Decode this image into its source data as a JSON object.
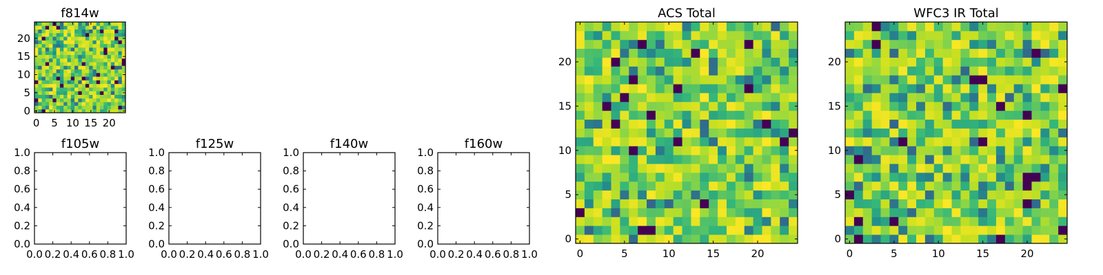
{
  "colors": {
    "cmap": [
      "#440154",
      "#3b528b",
      "#21918c",
      "#35b779",
      "#8fd744",
      "#c8e020",
      "#fde725"
    ],
    "axes": "#000000",
    "background": "#ffffff"
  },
  "chart_data": [
    {
      "id": "f814w",
      "type": "heatmap",
      "title": "f814w",
      "grid_size": 25,
      "xlim": [
        -0.5,
        24.5
      ],
      "ylim": [
        -0.5,
        24.5
      ],
      "xticks": [
        0,
        5,
        10,
        15,
        20
      ],
      "yticks": [
        0,
        5,
        10,
        15,
        20
      ],
      "xtick_labels": [
        "0",
        "5",
        "10",
        "15",
        "20"
      ],
      "ytick_labels": [
        "0",
        "5",
        "10",
        "15",
        "20"
      ],
      "value_range": [
        0,
        1
      ],
      "seed": 814
    },
    {
      "id": "f105w",
      "type": "empty",
      "title": "f105w",
      "xlim": [
        0,
        1
      ],
      "ylim": [
        0,
        1
      ],
      "xticks": [
        0,
        0.2,
        0.4,
        0.6,
        0.8,
        1.0
      ],
      "yticks": [
        0,
        0.2,
        0.4,
        0.6,
        0.8,
        1.0
      ],
      "xtick_labels": [
        "0.0",
        "0.2",
        "0.4",
        "0.6",
        "0.8",
        "1.0"
      ],
      "ytick_labels": [
        "0.0",
        "0.2",
        "0.4",
        "0.6",
        "0.8",
        "1.0"
      ]
    },
    {
      "id": "f125w",
      "type": "empty",
      "title": "f125w",
      "xlim": [
        0,
        1
      ],
      "ylim": [
        0,
        1
      ],
      "xticks": [
        0,
        0.2,
        0.4,
        0.6,
        0.8,
        1.0
      ],
      "yticks": [
        0,
        0.2,
        0.4,
        0.6,
        0.8,
        1.0
      ],
      "xtick_labels": [
        "0.0",
        "0.2",
        "0.4",
        "0.6",
        "0.8",
        "1.0"
      ],
      "ytick_labels": [
        "0.0",
        "0.2",
        "0.4",
        "0.6",
        "0.8",
        "1.0"
      ]
    },
    {
      "id": "f140w",
      "type": "empty",
      "title": "f140w",
      "xlim": [
        0,
        1
      ],
      "ylim": [
        0,
        1
      ],
      "xticks": [
        0,
        0.2,
        0.4,
        0.6,
        0.8,
        1.0
      ],
      "yticks": [
        0,
        0.2,
        0.4,
        0.6,
        0.8,
        1.0
      ],
      "xtick_labels": [
        "0.0",
        "0.2",
        "0.4",
        "0.6",
        "0.8",
        "1.0"
      ],
      "ytick_labels": [
        "0.0",
        "0.2",
        "0.4",
        "0.6",
        "0.8",
        "1.0"
      ]
    },
    {
      "id": "f160w",
      "type": "empty",
      "title": "f160w",
      "xlim": [
        0,
        1
      ],
      "ylim": [
        0,
        1
      ],
      "xticks": [
        0,
        0.2,
        0.4,
        0.6,
        0.8,
        1.0
      ],
      "yticks": [
        0,
        0.2,
        0.4,
        0.6,
        0.8,
        1.0
      ],
      "xtick_labels": [
        "0.0",
        "0.2",
        "0.4",
        "0.6",
        "0.8",
        "1.0"
      ],
      "ytick_labels": [
        "0.0",
        "0.2",
        "0.4",
        "0.6",
        "0.8",
        "1.0"
      ]
    },
    {
      "id": "acs-total",
      "type": "heatmap",
      "title": "ACS Total",
      "grid_size": 25,
      "xlim": [
        -0.5,
        24.5
      ],
      "ylim": [
        -0.5,
        24.5
      ],
      "xticks": [
        0,
        5,
        10,
        15,
        20
      ],
      "yticks": [
        0,
        5,
        10,
        15,
        20
      ],
      "xtick_labels": [
        "0",
        "5",
        "10",
        "15",
        "20"
      ],
      "ytick_labels": [
        "0",
        "5",
        "10",
        "15",
        "20"
      ],
      "value_range": [
        0,
        1
      ],
      "seed": 2047
    },
    {
      "id": "wfc3-ir-total",
      "type": "heatmap",
      "title": "WFC3 IR Total",
      "grid_size": 25,
      "xlim": [
        -0.5,
        24.5
      ],
      "ylim": [
        -0.5,
        24.5
      ],
      "xticks": [
        0,
        5,
        10,
        15,
        20
      ],
      "yticks": [
        0,
        5,
        10,
        15,
        20
      ],
      "xtick_labels": [
        "0",
        "5",
        "10",
        "15",
        "20"
      ],
      "ytick_labels": [
        "0",
        "5",
        "10",
        "15",
        "20"
      ],
      "value_range": [
        0,
        1
      ],
      "seed": 3131
    }
  ]
}
